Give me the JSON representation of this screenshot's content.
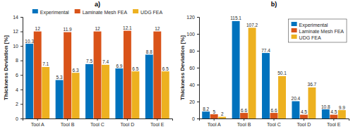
{
  "chart_data": [
    {
      "type": "bar",
      "title": "a)",
      "ylabel": "Thickness Deviation [%]",
      "categories": [
        "Tool A",
        "Tool B",
        "Tool C",
        "Tool D",
        "Tool E"
      ],
      "series": [
        {
          "name": "Experimental",
          "color": "#0072BD",
          "values": [
            10.3,
            5.3,
            7.5,
            6.9,
            8.8
          ]
        },
        {
          "name": "Laminate Mesh FEA",
          "color": "#D95319",
          "values": [
            12,
            11.9,
            12,
            12.1,
            12
          ]
        },
        {
          "name": "UDG FEA",
          "color": "#EDB120",
          "values": [
            7.1,
            6.3,
            7.4,
            6.5,
            6.5
          ]
        }
      ],
      "ylim": [
        0,
        14
      ],
      "yticks": [
        0,
        2,
        4,
        6,
        8,
        10,
        12,
        14
      ],
      "grid": false,
      "legend": "north",
      "data_labels": true
    },
    {
      "type": "bar",
      "title": "b)",
      "ylabel": "Thickness Deviation [%]",
      "categories": [
        "Tool A",
        "Tool B",
        "Tool C",
        "Tool D",
        "Tool E"
      ],
      "series": [
        {
          "name": "Experimental",
          "color": "#0072BD",
          "values": [
            8.2,
            115.1,
            77.4,
            20.4,
            10.8
          ]
        },
        {
          "name": "Laminate Mesh FEA",
          "color": "#D95319",
          "values": [
            5,
            6.6,
            6.6,
            4.5,
            4.5
          ]
        },
        {
          "name": "UDG FEA",
          "color": "#EDB120",
          "values": [
            2,
            107.2,
            50.1,
            36.7,
            9.9
          ]
        }
      ],
      "ylim": [
        0,
        120
      ],
      "yticks": [
        0,
        20,
        40,
        60,
        80,
        100,
        120
      ],
      "grid": false,
      "legend": "northeast",
      "data_labels": true
    }
  ]
}
